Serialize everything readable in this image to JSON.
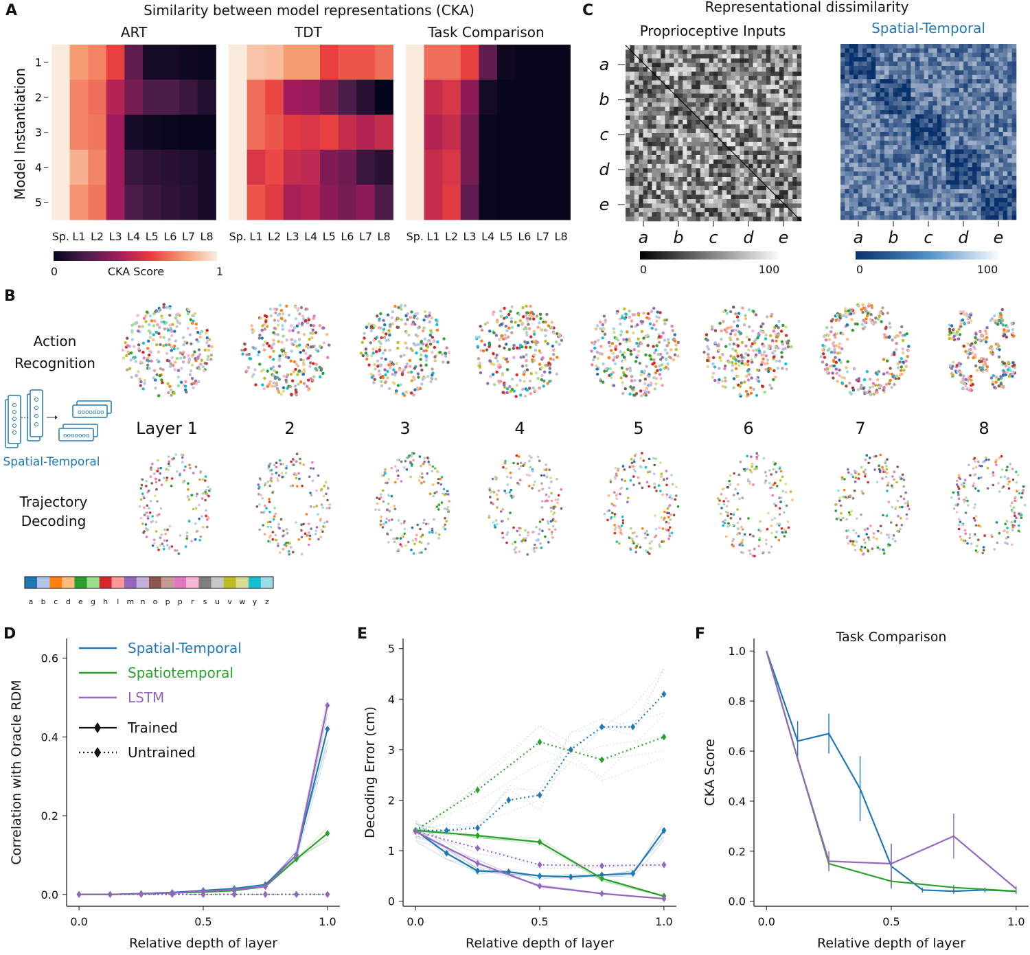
{
  "panels": {
    "A": "A",
    "B": "B",
    "C": "C",
    "D": "D",
    "E": "E",
    "F": "F"
  },
  "colors": {
    "spatial_temporal": "#1f77b4",
    "spatiotemporal": "#2ca02c",
    "lstm": "#9467bd",
    "rdm_c2": "#1f5fa6"
  },
  "chart_data": [
    {
      "id": "A",
      "type": "heatmap",
      "title": "Similarity between model representations (CKA)",
      "ylabel": "Model Instantiation",
      "row_labels": [
        "1",
        "2",
        "3",
        "4",
        "5"
      ],
      "col_labels": [
        "Sp.",
        "L1",
        "L2",
        "L3",
        "L4",
        "L5",
        "L6",
        "L7",
        "L8"
      ],
      "colorbar": {
        "label": "CKA Score",
        "min": "0",
        "max": "1",
        "vmin": 0,
        "vmax": 1
      },
      "subplots": [
        {
          "title": "ART",
          "values": [
            [
              1.0,
              0.8,
              0.75,
              0.6,
              0.25,
              0.05,
              0.05,
              0.03,
              0.02
            ],
            [
              1.0,
              0.75,
              0.7,
              0.45,
              0.3,
              0.2,
              0.2,
              0.15,
              0.08
            ],
            [
              1.0,
              0.75,
              0.72,
              0.4,
              0.05,
              0.03,
              0.02,
              0.01,
              0.01
            ],
            [
              1.0,
              0.85,
              0.75,
              0.4,
              0.15,
              0.12,
              0.1,
              0.08,
              0.06
            ],
            [
              1.0,
              0.78,
              0.72,
              0.4,
              0.2,
              0.15,
              0.12,
              0.1,
              0.05
            ]
          ]
        },
        {
          "title": "TDT",
          "values": [
            [
              1.0,
              0.9,
              0.88,
              0.8,
              0.8,
              0.6,
              0.65,
              0.65,
              0.7
            ],
            [
              1.0,
              0.7,
              0.62,
              0.4,
              0.38,
              0.3,
              0.2,
              0.1,
              0.0
            ],
            [
              1.0,
              0.7,
              0.65,
              0.58,
              0.55,
              0.6,
              0.5,
              0.45,
              0.5
            ],
            [
              1.0,
              0.55,
              0.62,
              0.5,
              0.48,
              0.32,
              0.28,
              0.15,
              0.1
            ],
            [
              1.0,
              0.65,
              0.58,
              0.42,
              0.45,
              0.35,
              0.3,
              0.35,
              0.2
            ]
          ]
        },
        {
          "title": "Task Comparison",
          "values": [
            [
              1.0,
              0.7,
              0.7,
              0.6,
              0.25,
              0.03,
              0.01,
              0.01,
              0.01
            ],
            [
              1.0,
              0.5,
              0.55,
              0.35,
              0.05,
              0.01,
              0.01,
              0.01,
              0.01
            ],
            [
              1.0,
              0.45,
              0.5,
              0.3,
              0.02,
              0.01,
              0.01,
              0.01,
              0.01
            ],
            [
              1.0,
              0.5,
              0.55,
              0.3,
              0.02,
              0.01,
              0.01,
              0.01,
              0.01
            ],
            [
              1.0,
              0.5,
              0.58,
              0.25,
              0.02,
              0.01,
              0.01,
              0.01,
              0.01
            ]
          ]
        }
      ]
    },
    {
      "id": "C",
      "type": "heatmap",
      "title": "Representational dissimilarity",
      "subplots": [
        {
          "title": "Proprioceptive Inputs"
        },
        {
          "title": "Spatial-Temporal"
        }
      ],
      "axis_labels": [
        "a",
        "b",
        "c",
        "d",
        "e"
      ],
      "colorbar": {
        "min": "0",
        "max": "100"
      }
    },
    {
      "id": "B",
      "type": "scatter",
      "row_labels": [
        "Action Recognition",
        "Trajectory Decoding"
      ],
      "model_label": "Spatial-Temporal",
      "layer_labels": [
        "Layer 1",
        "2",
        "3",
        "4",
        "5",
        "6",
        "7",
        "8"
      ],
      "legend": [
        "a",
        "b",
        "c",
        "d",
        "e",
        "g",
        "h",
        "l",
        "m",
        "n",
        "o",
        "p",
        "p",
        "r",
        "s",
        "u",
        "v",
        "w",
        "y",
        "z"
      ],
      "legend_colors": [
        "#1f77b4",
        "#aec7e8",
        "#ff7f0e",
        "#ffbb78",
        "#2ca02c",
        "#98df8a",
        "#d62728",
        "#ff9896",
        "#9467bd",
        "#c5b0d5",
        "#8c564b",
        "#c49c94",
        "#e377c2",
        "#f7b6d2",
        "#7f7f7f",
        "#c7c7c7",
        "#bcbd22",
        "#dbdb8d",
        "#17becf",
        "#9edae5"
      ]
    },
    {
      "id": "D",
      "type": "line",
      "ylabel": "Correlation with Oracle RDM",
      "xlabel": "Relative depth of layer",
      "xlim": [
        -0.05,
        1.05
      ],
      "ylim": [
        -0.03,
        0.65
      ],
      "xticks": [
        "0.0",
        "0.5",
        "1.0"
      ],
      "xtick_values": [
        0,
        0.5,
        1
      ],
      "yticks": [
        "0.0",
        "0.2",
        "0.4",
        "0.6"
      ],
      "ytick_values": [
        0,
        0.2,
        0.4,
        0.6
      ],
      "legend": {
        "series": [
          "Spatial-Temporal",
          "Spatiotemporal",
          "LSTM"
        ],
        "styles": [
          "Trained",
          "Untrained"
        ]
      },
      "x": [
        0,
        0.125,
        0.25,
        0.375,
        0.5,
        0.625,
        0.75,
        0.875,
        1.0
      ],
      "series": [
        {
          "name": "Spatial-Temporal",
          "style": "trained",
          "values": [
            0,
            0,
            0.002,
            0.005,
            0.01,
            0.015,
            0.025,
            0.1,
            0.42
          ]
        },
        {
          "name": "Spatiotemporal",
          "style": "trained",
          "values": [
            0,
            0,
            0.002,
            0.004,
            0.006,
            0.01,
            0.02,
            0.09,
            0.155
          ]
        },
        {
          "name": "LSTM",
          "style": "trained",
          "values": [
            0,
            0,
            0.002,
            0.004,
            0.008,
            0.012,
            0.02,
            0.1,
            0.48
          ]
        },
        {
          "name": "Spatial-Temporal",
          "style": "untrained",
          "values": [
            0,
            0,
            0,
            0,
            0,
            0,
            0,
            0,
            0
          ]
        },
        {
          "name": "Spatiotemporal",
          "style": "untrained",
          "values": [
            0,
            0,
            0,
            0,
            0,
            0,
            0,
            0,
            0
          ]
        },
        {
          "name": "LSTM",
          "style": "untrained",
          "values": [
            0,
            0,
            0,
            0,
            0,
            0,
            0,
            0,
            0
          ]
        }
      ]
    },
    {
      "id": "E",
      "type": "line",
      "ylabel": "Decoding Error (cm)",
      "xlabel": "Relative depth of layer",
      "xlim": [
        -0.05,
        1.05
      ],
      "ylim": [
        -0.1,
        5.2
      ],
      "xticks": [
        "0.0",
        "0.5",
        "1.0"
      ],
      "xtick_values": [
        0,
        0.5,
        1
      ],
      "yticks": [
        "0",
        "1",
        "2",
        "3",
        "4",
        "5"
      ],
      "ytick_values": [
        0,
        1,
        2,
        3,
        4,
        5
      ],
      "x": [
        0,
        0.125,
        0.25,
        0.375,
        0.5,
        0.625,
        0.75,
        0.875,
        1.0
      ],
      "series": [
        {
          "name": "Spatial-Temporal",
          "style": "trained",
          "values": [
            1.4,
            0.95,
            0.6,
            0.58,
            0.5,
            0.48,
            0.52,
            0.55,
            1.4
          ]
        },
        {
          "name": "Spatiotemporal",
          "style": "trained",
          "x": [
            0,
            0.25,
            0.5,
            0.75,
            1.0
          ],
          "values": [
            1.4,
            1.3,
            1.17,
            0.45,
            0.1
          ]
        },
        {
          "name": "LSTM",
          "style": "trained",
          "x": [
            0,
            0.25,
            0.5,
            0.75,
            1.0
          ],
          "values": [
            1.38,
            0.75,
            0.3,
            0.15,
            0.05
          ]
        },
        {
          "name": "Spatial-Temporal",
          "style": "untrained",
          "values": [
            1.4,
            1.4,
            1.45,
            2.0,
            2.1,
            3.0,
            3.45,
            3.45,
            4.1
          ]
        },
        {
          "name": "Spatiotemporal",
          "style": "untrained",
          "x": [
            0,
            0.25,
            0.5,
            0.75,
            1.0
          ],
          "values": [
            1.4,
            2.2,
            3.15,
            2.8,
            3.25
          ]
        },
        {
          "name": "LSTM",
          "style": "untrained",
          "x": [
            0,
            0.25,
            0.5,
            0.75,
            1.0
          ],
          "values": [
            1.38,
            1.05,
            0.72,
            0.7,
            0.72
          ]
        }
      ]
    },
    {
      "id": "F",
      "type": "line",
      "title": "Task Comparison",
      "ylabel": "CKA Score",
      "xlabel": "Relative depth of layer",
      "xlim": [
        -0.05,
        1.05
      ],
      "ylim": [
        -0.02,
        1.05
      ],
      "xticks": [
        "0.0",
        "0.5",
        "1.0"
      ],
      "xtick_values": [
        0,
        0.5,
        1
      ],
      "yticks": [
        "0.0",
        "0.2",
        "0.4",
        "0.6",
        "0.8",
        "1.0"
      ],
      "ytick_values": [
        0,
        0.2,
        0.4,
        0.6,
        0.8,
        1.0
      ],
      "series": [
        {
          "name": "Spatial-Temporal",
          "x": [
            0,
            0.125,
            0.25,
            0.375,
            0.5,
            0.625,
            0.75,
            0.875,
            1.0
          ],
          "values": [
            1.0,
            0.64,
            0.67,
            0.45,
            0.14,
            0.045,
            0.04,
            0.045,
            0.04
          ],
          "err": [
            0,
            0.08,
            0.08,
            0.13,
            0.09,
            0.01,
            0.01,
            0.01,
            0.01
          ]
        },
        {
          "name": "Spatiotemporal",
          "x": [
            0,
            0.125,
            0.25,
            0.5,
            0.75,
            1.0
          ],
          "values": [
            1.0,
            0.57,
            0.15,
            0.08,
            0.055,
            0.04
          ],
          "err": [
            0,
            0,
            0.03,
            0.02,
            0.01,
            0.01
          ]
        },
        {
          "name": "LSTM",
          "x": [
            0,
            0.125,
            0.25,
            0.5,
            0.75,
            1.0
          ],
          "values": [
            1.0,
            0.57,
            0.16,
            0.15,
            0.26,
            0.05
          ],
          "err": [
            0,
            0,
            0.04,
            0.08,
            0.09,
            0.01
          ]
        }
      ]
    }
  ]
}
